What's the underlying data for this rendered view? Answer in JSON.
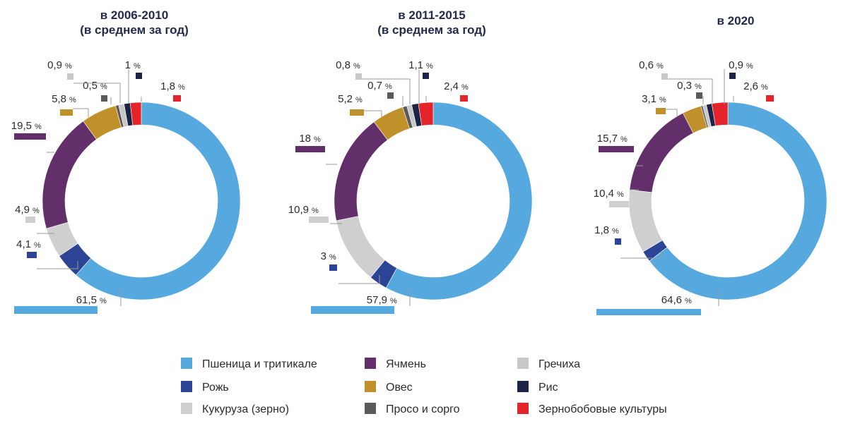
{
  "chart_data": [
    {
      "type": "pie",
      "title_lines": [
        "в 2006-2010",
        "(в среднем за год)"
      ],
      "values": [
        61.5,
        4.1,
        4.9,
        19.5,
        5.8,
        0.5,
        0.9,
        1.0,
        1.8
      ],
      "value_labels": [
        "61,5",
        "4,1",
        "4,9",
        "19,5",
        "5,8",
        "0,5",
        "0,9",
        "1",
        "1,8"
      ]
    },
    {
      "type": "pie",
      "title_lines": [
        "в 2011-2015",
        "(в среднем за год)"
      ],
      "values": [
        57.9,
        3.0,
        10.9,
        18.0,
        5.2,
        0.7,
        0.8,
        1.1,
        2.4
      ],
      "value_labels": [
        "57,9",
        "3",
        "10,9",
        "18",
        "5,2",
        "0,7",
        "0,8",
        "1,1",
        "2,4"
      ]
    },
    {
      "type": "pie",
      "title_lines": [
        "в 2020"
      ],
      "values": [
        64.6,
        1.8,
        10.4,
        15.7,
        3.1,
        0.3,
        0.6,
        0.9,
        2.6
      ],
      "value_labels": [
        "64,6",
        "1,8",
        "10,4",
        "15,7",
        "3,1",
        "0,3",
        "0,6",
        "0,9",
        "2,6"
      ]
    }
  ],
  "categories": [
    {
      "name": "Пшеница и тритикале",
      "color": "#55a9df"
    },
    {
      "name": "Рожь",
      "color": "#2c4496"
    },
    {
      "name": "Кукуруза (зерно)",
      "color": "#cfcfcf"
    },
    {
      "name": "Ячмень",
      "color": "#622f6b"
    },
    {
      "name": "Овес",
      "color": "#c0912b"
    },
    {
      "name": "Просо и сорго",
      "color": "#5a5a5a"
    },
    {
      "name": "Гречиха",
      "color": "#c8c8c8"
    },
    {
      "name": "Рис",
      "color": "#1b2447"
    },
    {
      "name": "Зернобобовые культуры",
      "color": "#e5232a"
    }
  ],
  "percent_sign": "%",
  "legend_order": [
    0,
    3,
    6,
    1,
    4,
    7,
    2,
    5,
    8
  ]
}
